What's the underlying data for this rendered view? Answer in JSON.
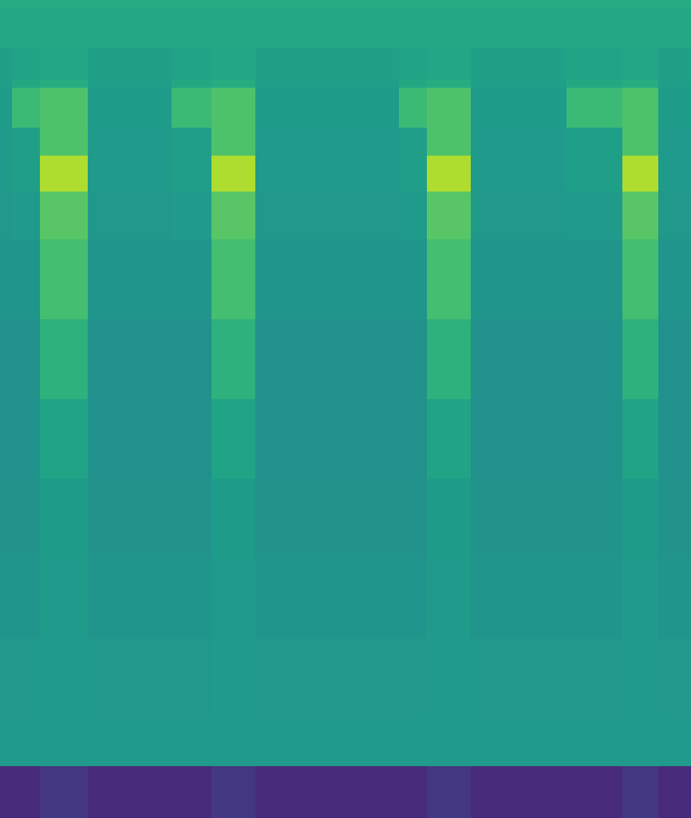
{
  "chart_data": {
    "type": "heatmap",
    "color": "Viridis",
    "tick_labels": false,
    "grid": false,
    "x": [
      0,
      15,
      50,
      110,
      160,
      215,
      265,
      320,
      380,
      440,
      500,
      535,
      590,
      650,
      710,
      780,
      825,
      866
    ],
    "y": [
      0,
      10,
      60,
      100,
      110,
      160,
      195,
      240,
      300,
      400,
      500,
      600,
      700,
      800,
      900,
      960,
      1025
    ],
    "xlim": [
      0,
      866
    ],
    "ylim": [
      1025,
      0
    ],
    "zlim": [
      0,
      1
    ],
    "cells": [
      [
        0.62,
        0.62,
        0.62,
        0.62,
        0.62,
        0.62,
        0.62,
        0.62,
        0.62,
        0.62,
        0.62,
        0.62,
        0.62,
        0.62,
        0.62,
        0.62,
        0.62
      ],
      [
        0.6,
        0.6,
        0.6,
        0.6,
        0.6,
        0.6,
        0.6,
        0.6,
        0.6,
        0.6,
        0.6,
        0.6,
        0.6,
        0.6,
        0.6,
        0.6,
        0.6
      ],
      [
        0.57,
        0.58,
        0.59,
        0.57,
        0.57,
        0.58,
        0.59,
        0.57,
        0.57,
        0.57,
        0.58,
        0.59,
        0.57,
        0.57,
        0.58,
        0.59,
        0.57
      ],
      [
        0.56,
        0.6,
        0.62,
        0.56,
        0.56,
        0.6,
        0.62,
        0.56,
        0.56,
        0.56,
        0.6,
        0.62,
        0.56,
        0.56,
        0.6,
        0.62,
        0.56
      ],
      [
        0.55,
        0.68,
        0.72,
        0.55,
        0.55,
        0.68,
        0.72,
        0.55,
        0.55,
        0.55,
        0.68,
        0.72,
        0.55,
        0.55,
        0.68,
        0.72,
        0.55
      ],
      [
        0.54,
        0.56,
        0.72,
        0.54,
        0.54,
        0.56,
        0.72,
        0.54,
        0.54,
        0.54,
        0.56,
        0.72,
        0.54,
        0.54,
        0.56,
        0.72,
        0.54
      ],
      [
        0.54,
        0.56,
        0.88,
        0.54,
        0.54,
        0.56,
        0.88,
        0.54,
        0.54,
        0.54,
        0.56,
        0.88,
        0.54,
        0.54,
        0.56,
        0.88,
        0.54
      ],
      [
        0.53,
        0.54,
        0.74,
        0.53,
        0.53,
        0.54,
        0.74,
        0.53,
        0.53,
        0.53,
        0.54,
        0.74,
        0.53,
        0.53,
        0.54,
        0.74,
        0.53
      ],
      [
        0.52,
        0.52,
        0.7,
        0.52,
        0.52,
        0.52,
        0.7,
        0.52,
        0.52,
        0.52,
        0.52,
        0.7,
        0.52,
        0.52,
        0.52,
        0.7,
        0.52
      ],
      [
        0.5,
        0.5,
        0.64,
        0.5,
        0.5,
        0.5,
        0.64,
        0.5,
        0.5,
        0.5,
        0.5,
        0.64,
        0.5,
        0.5,
        0.5,
        0.64,
        0.5
      ],
      [
        0.5,
        0.5,
        0.58,
        0.5,
        0.5,
        0.5,
        0.58,
        0.5,
        0.5,
        0.5,
        0.5,
        0.58,
        0.5,
        0.5,
        0.5,
        0.58,
        0.5
      ],
      [
        0.51,
        0.51,
        0.55,
        0.51,
        0.51,
        0.51,
        0.55,
        0.51,
        0.51,
        0.51,
        0.51,
        0.55,
        0.51,
        0.51,
        0.51,
        0.55,
        0.51
      ],
      [
        0.52,
        0.52,
        0.54,
        0.52,
        0.52,
        0.52,
        0.54,
        0.52,
        0.52,
        0.52,
        0.52,
        0.54,
        0.52,
        0.52,
        0.52,
        0.54,
        0.52
      ],
      [
        0.53,
        0.53,
        0.54,
        0.53,
        0.53,
        0.53,
        0.54,
        0.53,
        0.53,
        0.53,
        0.53,
        0.54,
        0.53,
        0.53,
        0.53,
        0.54,
        0.53
      ],
      [
        0.54,
        0.54,
        0.54,
        0.54,
        0.54,
        0.54,
        0.54,
        0.54,
        0.54,
        0.54,
        0.54,
        0.54,
        0.54,
        0.54,
        0.54,
        0.54,
        0.54
      ],
      [
        0.12,
        0.12,
        0.16,
        0.12,
        0.12,
        0.12,
        0.16,
        0.12,
        0.12,
        0.12,
        0.12,
        0.16,
        0.12,
        0.12,
        0.12,
        0.16,
        0.12
      ]
    ]
  }
}
